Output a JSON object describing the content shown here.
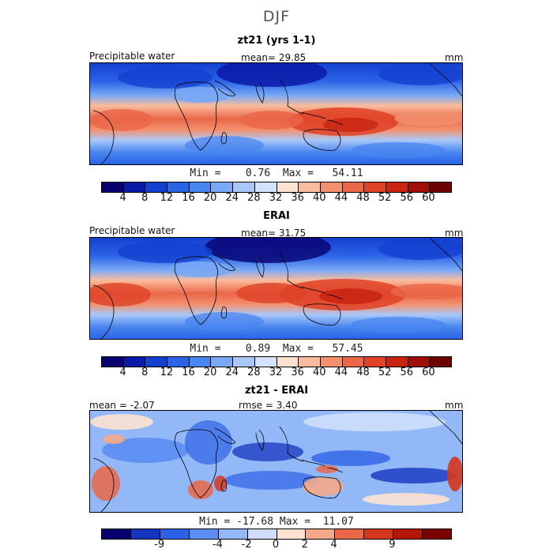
{
  "figure_title": "DJF",
  "colors": {
    "abs": [
      "#08006e",
      "#0a1aa8",
      "#1440d0",
      "#2a64e6",
      "#4a86f0",
      "#79a9f5",
      "#a9c8f8",
      "#d3e3fb",
      "#fde2cf",
      "#f9bc9c",
      "#f3916f",
      "#ea6748",
      "#df4227",
      "#c82410",
      "#a00e06",
      "#6e0202"
    ],
    "diff": [
      "#08006e",
      "#1536c0",
      "#2e62e6",
      "#5a8ef2",
      "#93b8f7",
      "#cfdffb",
      "#fde2cf",
      "#f5a888",
      "#ea6748",
      "#d6361d",
      "#b2170a",
      "#7a0404"
    ]
  },
  "panels": [
    {
      "title": "zt21 (yrs 1-1)",
      "left_label": "Precipitable water",
      "center_label": "mean=  29.85",
      "right_label": "mm",
      "min_label": "Min =",
      "min_value": "0.76",
      "max_label": "Max =",
      "max_value": "54.11",
      "ticks": [
        "4",
        "8",
        "12",
        "16",
        "20",
        "24",
        "28",
        "32",
        "36",
        "40",
        "44",
        "48",
        "52",
        "56",
        "60"
      ]
    },
    {
      "title": "ERAI",
      "left_label": "Precipitable water",
      "center_label": "mean=  31.75",
      "right_label": "mm",
      "min_label": "Min =",
      "min_value": "0.89",
      "max_label": "Max =",
      "max_value": "57.45",
      "ticks": [
        "4",
        "8",
        "12",
        "16",
        "20",
        "24",
        "28",
        "32",
        "36",
        "40",
        "44",
        "48",
        "52",
        "56",
        "60"
      ]
    },
    {
      "title": "zt21 - ERAI",
      "left_label": "mean =  -2.07",
      "center_label": "rmse =   3.40",
      "right_label": "mm",
      "min_label": "Min =",
      "min_value": "-17.68",
      "max_label": "Max =",
      "max_value": "11.07",
      "ticks": [
        "-9",
        "-4",
        "-2",
        "0",
        "2",
        "4",
        "9"
      ]
    }
  ]
}
